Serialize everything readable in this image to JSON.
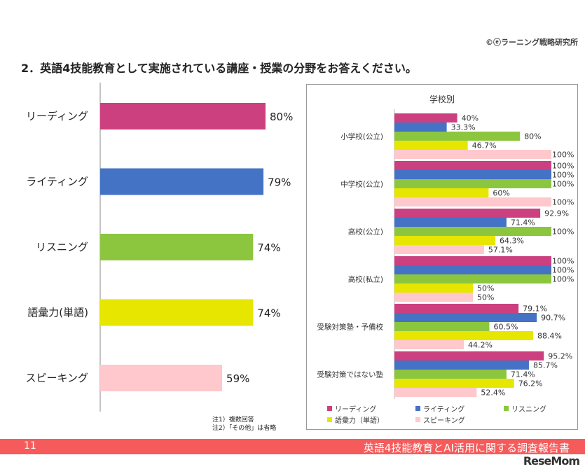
{
  "copyright": "©ⓔラーニング戦略研究所",
  "title": "2．英語4技能教育として実施されている講座・授業の分野をお答えください。",
  "notes": [
    "注1）複数回答",
    "注2）「その他」は省略"
  ],
  "footer": {
    "page": "11",
    "title": "英語4技能教育とAI活用に関する調査報告書",
    "logo": "ReseMom"
  },
  "chart_data": [
    {
      "type": "bar",
      "orientation": "horizontal",
      "categories": [
        "リーディング",
        "ライティング",
        "リスニング",
        "語彙力(単語)",
        "スピーキング"
      ],
      "values": [
        80,
        79,
        74,
        74,
        59
      ],
      "labels": [
        "80%",
        "79%",
        "74%",
        "74%",
        "59%"
      ],
      "colors": [
        "#cc4080",
        "#4472c4",
        "#8cc63f",
        "#e6e600",
        "#ffc8cc"
      ],
      "xlim": [
        0,
        100
      ]
    },
    {
      "type": "bar",
      "orientation": "horizontal",
      "title": "学校別",
      "categories": [
        "小学校(公立)",
        "中学校(公立)",
        "高校(公立)",
        "高校(私立)",
        "受験対策塾・予備校",
        "受験対策ではない塾"
      ],
      "xlim": [
        0,
        100
      ],
      "legend": "bottom",
      "series": [
        {
          "name": "リーディング",
          "color": "#cc4080",
          "values": [
            40,
            100,
            92.9,
            100,
            79.1,
            95.2
          ]
        },
        {
          "name": "ライティング",
          "color": "#4472c4",
          "values": [
            33.3,
            100,
            71.4,
            100,
            90.7,
            85.7
          ]
        },
        {
          "name": "リスニング",
          "color": "#8cc63f",
          "values": [
            80,
            100,
            100,
            100,
            60.5,
            71.4
          ]
        },
        {
          "name": "語彙力（単語）",
          "color": "#e6e600",
          "values": [
            46.7,
            60,
            64.3,
            50,
            88.4,
            76.2
          ]
        },
        {
          "name": "スピーキング",
          "color": "#ffc8cc",
          "values": [
            100,
            100,
            57.1,
            50,
            44.2,
            52.4
          ]
        }
      ]
    }
  ]
}
